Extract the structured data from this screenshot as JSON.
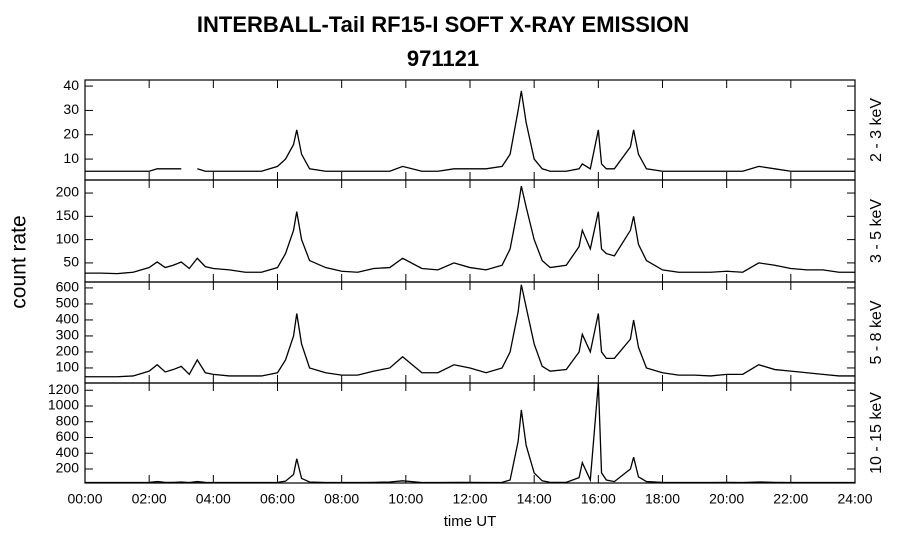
{
  "chart_data": {
    "type": "line",
    "title": "INTERBALL-Tail RF15-I SOFT X-RAY EMISSION",
    "subtitle": "971121",
    "xlabel": "time UT",
    "ylabel": "count rate",
    "color": "#000000",
    "x": [
      0,
      0.5,
      1,
      1.5,
      2,
      2.25,
      2.5,
      2.75,
      3,
      3.25,
      3.5,
      3.75,
      4,
      4.5,
      5,
      5.5,
      6,
      6.25,
      6.5,
      6.6,
      6.75,
      7,
      7.5,
      8,
      8.5,
      9,
      9.5,
      9.9,
      10.5,
      11,
      11.5,
      12,
      12.5,
      13,
      13.25,
      13.5,
      13.6,
      13.75,
      14,
      14.25,
      14.5,
      15,
      15.4,
      15.5,
      15.75,
      16,
      16.1,
      16.25,
      16.5,
      17,
      17.1,
      17.25,
      17.5,
      18,
      18.5,
      19,
      19.5,
      20,
      20.5,
      21,
      21.5,
      22,
      22.5,
      23,
      23.5,
      24
    ],
    "xlim": [
      0,
      24
    ],
    "xticks": [
      {
        "value": 0,
        "label": "00:00"
      },
      {
        "value": 2,
        "label": "02:00"
      },
      {
        "value": 4,
        "label": "04:00"
      },
      {
        "value": 6,
        "label": "06:00"
      },
      {
        "value": 8,
        "label": "08:00"
      },
      {
        "value": 10,
        "label": "10:00"
      },
      {
        "value": 12,
        "label": "12:00"
      },
      {
        "value": 14,
        "label": "14:00"
      },
      {
        "value": 16,
        "label": "16:00"
      },
      {
        "value": 18,
        "label": "18:00"
      },
      {
        "value": 20,
        "label": "20:00"
      },
      {
        "value": 22,
        "label": "22:00"
      },
      {
        "value": 24,
        "label": "24:00"
      }
    ],
    "series": [
      {
        "name": "2 - 3 keV",
        "ylim": [
          1.4,
          42.5
        ],
        "yticks": [
          10,
          20,
          30,
          40
        ],
        "values": [
          5,
          5,
          5,
          5,
          5,
          6,
          6,
          6,
          6,
          null,
          6,
          5,
          5,
          5,
          5,
          5,
          7,
          10,
          16,
          22,
          12,
          6,
          5,
          5,
          5,
          5,
          5,
          7,
          5,
          5,
          6,
          6,
          6,
          7,
          12,
          30,
          38,
          25,
          10,
          6,
          5,
          5,
          6,
          8,
          6,
          22,
          8,
          6,
          6,
          15,
          22,
          12,
          6,
          5,
          5,
          5,
          5,
          5,
          5,
          7,
          6,
          5,
          5,
          5,
          5,
          5
        ]
      },
      {
        "name": "3 - 5 keV",
        "ylim": [
          9,
          228
        ],
        "yticks": [
          50,
          100,
          150,
          200
        ],
        "values": [
          28,
          28,
          27,
          30,
          40,
          52,
          40,
          45,
          52,
          38,
          60,
          42,
          38,
          35,
          30,
          30,
          40,
          70,
          120,
          160,
          100,
          55,
          40,
          32,
          30,
          38,
          40,
          60,
          38,
          35,
          50,
          40,
          35,
          45,
          80,
          170,
          215,
          170,
          100,
          55,
          40,
          45,
          85,
          120,
          80,
          160,
          80,
          70,
          65,
          120,
          150,
          90,
          55,
          35,
          30,
          30,
          30,
          32,
          30,
          50,
          45,
          38,
          35,
          35,
          30,
          30
        ]
      },
      {
        "name": "5 - 8 keV",
        "ylim": [
          6,
          637
        ],
        "yticks": [
          100,
          200,
          300,
          400,
          500,
          600
        ],
        "values": [
          45,
          45,
          45,
          50,
          80,
          120,
          75,
          90,
          110,
          60,
          150,
          70,
          60,
          50,
          50,
          50,
          70,
          150,
          300,
          440,
          250,
          100,
          70,
          55,
          55,
          80,
          100,
          170,
          70,
          70,
          120,
          100,
          70,
          100,
          200,
          450,
          620,
          480,
          250,
          110,
          80,
          90,
          200,
          310,
          200,
          440,
          200,
          160,
          160,
          280,
          400,
          230,
          100,
          70,
          55,
          55,
          50,
          60,
          60,
          120,
          90,
          80,
          70,
          60,
          50,
          50
        ]
      },
      {
        "name": "10 - 15 keV",
        "ylim": [
          22,
          1292
        ],
        "yticks": [
          200,
          400,
          600,
          800,
          1000,
          1200
        ],
        "values": [
          28,
          28,
          28,
          28,
          30,
          40,
          30,
          30,
          35,
          28,
          40,
          30,
          28,
          28,
          28,
          28,
          30,
          45,
          130,
          330,
          80,
          35,
          28,
          28,
          28,
          30,
          35,
          50,
          28,
          28,
          30,
          30,
          28,
          30,
          60,
          550,
          950,
          500,
          150,
          50,
          30,
          30,
          90,
          280,
          60,
          1290,
          150,
          60,
          40,
          200,
          350,
          100,
          40,
          30,
          28,
          28,
          28,
          30,
          28,
          35,
          30,
          28,
          28,
          28,
          28,
          28
        ]
      }
    ]
  }
}
